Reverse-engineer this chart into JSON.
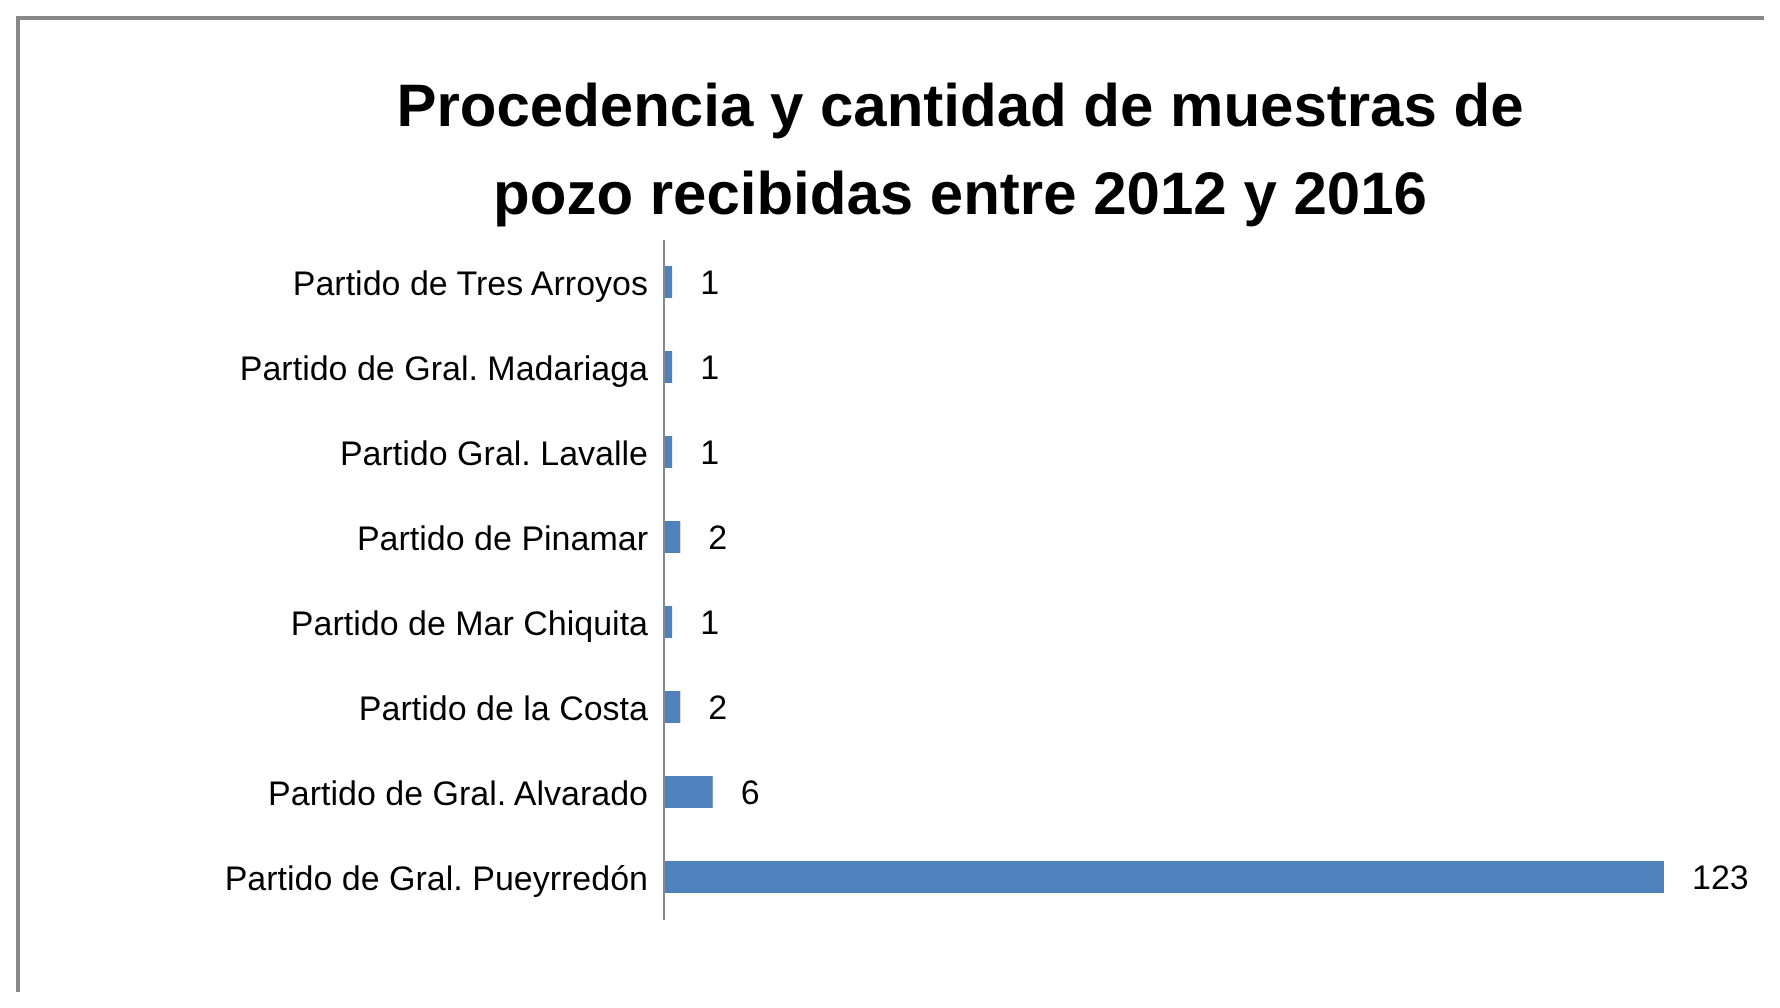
{
  "chart_data": {
    "type": "bar",
    "orientation": "horizontal",
    "title": "Procedencia y cantidad de muestras de pozo recibidas entre 2012 y 2016",
    "categories": [
      "Partido de Tres Arroyos",
      "Partido de Gral. Madariaga",
      "Partido Gral. Lavalle",
      "Partido de Pinamar",
      "Partido de Mar Chiquita",
      "Partido de la Costa",
      "Partido de Gral. Alvarado",
      "Partido de Gral. Pueyrredón"
    ],
    "values": [
      1,
      1,
      1,
      2,
      1,
      2,
      6,
      123
    ],
    "color": "#4f81bd",
    "data_labels": true
  }
}
